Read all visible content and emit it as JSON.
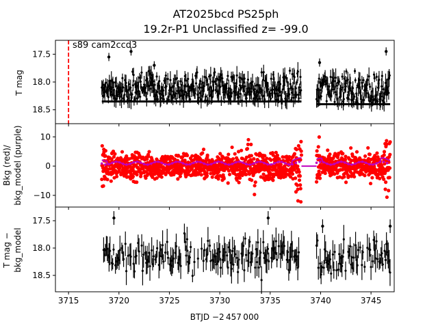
{
  "title_line1": "AT2025bcd  PS25ph",
  "title_line2": "19.2r-P1 Unclassified z= -99.0",
  "annotation": "s89 cam2ccd3",
  "colors": {
    "data": "#000000",
    "bkg": "#ff0000",
    "bkg_model": "#bf00bf",
    "marker_line": "#ff0000"
  },
  "chart_data": [
    {
      "panel": "top",
      "type": "scatter",
      "ylabel": "T mag",
      "ylim_inverted": [
        18.75,
        17.25
      ],
      "yticks": [
        "17.5",
        "18.0",
        "18.5"
      ],
      "xlim": [
        3713.7,
        3747.3
      ],
      "vertical_line_x": 3715.0,
      "segments": [
        {
          "x_range": [
            3718.3,
            3738.1
          ],
          "baseline": 18.35,
          "upper_envelope": 17.9
        },
        {
          "x_range": [
            3739.6,
            3746.9
          ],
          "baseline": 18.4,
          "upper_envelope": 17.9
        }
      ],
      "outliers": [
        {
          "x": 3719.0,
          "y": 17.55
        },
        {
          "x": 3721.2,
          "y": 17.45
        },
        {
          "x": 3723.5,
          "y": 17.7
        },
        {
          "x": 3739.9,
          "y": 17.65
        },
        {
          "x": 3746.5,
          "y": 17.45
        }
      ]
    },
    {
      "panel": "middle",
      "type": "scatter",
      "ylabel_line1": "Bkg (red)/",
      "ylabel_line2": "bkg_model (purple)",
      "ylim": [
        -14,
        14.5
      ],
      "yticks": [
        "10",
        "0",
        "−10"
      ],
      "model_level": 1.0,
      "gap_x_range": [
        3738.1,
        3739.6
      ],
      "gap_level": 0.0
    },
    {
      "panel": "bottom",
      "type": "scatter",
      "ylabel_line1": "T mag −",
      "ylabel_line2": "bkg_model",
      "ylim_inverted": [
        18.8,
        17.25
      ],
      "yticks": [
        "17.5",
        "18.0",
        "18.5"
      ],
      "xticks": [
        "3715",
        "3720",
        "3725",
        "3730",
        "3735",
        "3740",
        "3745"
      ],
      "xlabel": "BTJD −2 457 000",
      "segments": [
        {
          "x_range": [
            3718.3,
            3738.1
          ],
          "center": 18.15
        },
        {
          "x_range": [
            3739.6,
            3746.9
          ],
          "center": 18.2
        }
      ],
      "outliers": [
        {
          "x": 3719.5,
          "y": 17.45
        },
        {
          "x": 3734.8,
          "y": 17.45
        },
        {
          "x": 3740.2,
          "y": 17.6
        },
        {
          "x": 3746.9,
          "y": 17.6
        }
      ]
    }
  ]
}
